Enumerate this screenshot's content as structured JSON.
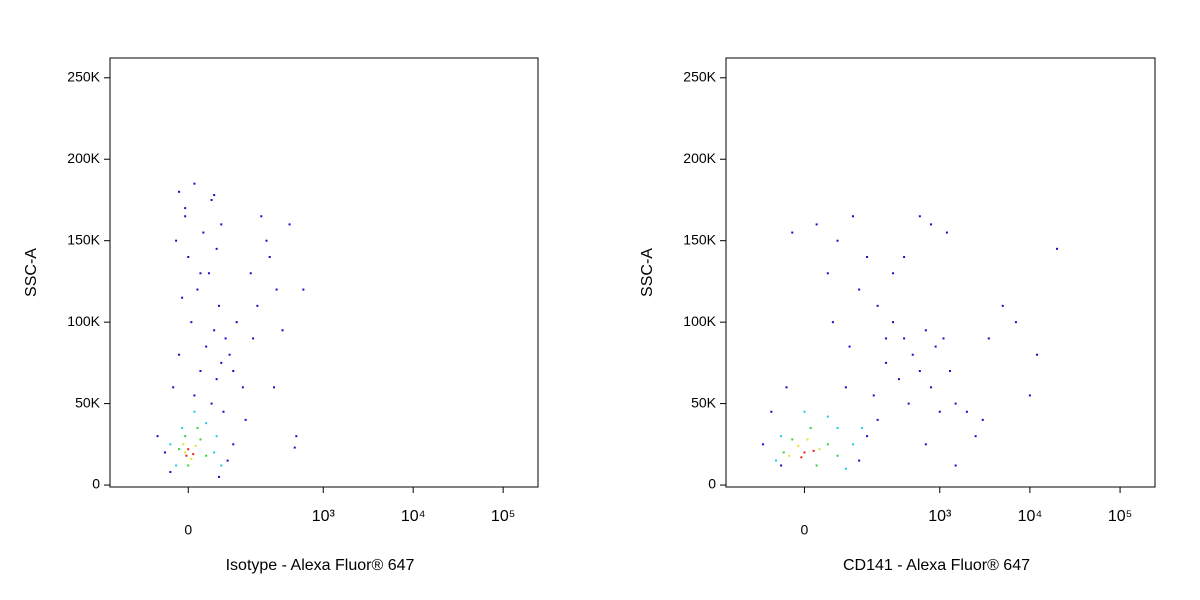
{
  "chart_data": [
    {
      "type": "scatter",
      "xscale": "biexponential",
      "xlabel": "Isotype - Alexa Fluor® 647",
      "ylabel": "SSC-A",
      "xlim": [
        -230,
        244000
      ],
      "ylim": [
        -1200,
        262144
      ],
      "xticks": [
        0,
        {
          "value": 1000,
          "label": "10³"
        },
        {
          "value": 10000,
          "label": "10⁴"
        },
        {
          "value": 100000,
          "label": "10⁵"
        }
      ],
      "yticks": [
        0,
        {
          "value": 50000,
          "label": "50K"
        },
        {
          "value": 100000,
          "label": "100K"
        },
        {
          "value": 150000,
          "label": "150K"
        },
        {
          "value": 200000,
          "label": "200K"
        },
        {
          "value": 250000,
          "label": "250K"
        }
      ],
      "series": [
        {
          "color": "#1010c8",
          "x": [
            -15,
            10,
            40,
            60,
            -5,
            25,
            50,
            0,
            -20,
            35,
            15,
            55,
            -10,
            45,
            70,
            5,
            30,
            60,
            -15,
            20,
            50,
            80,
            10,
            40,
            -25,
            65,
            100,
            90,
            120,
            150,
            200,
            250,
            180,
            300,
            350,
            280,
            230,
            160,
            420,
            600,
            500,
            480,
            130,
            90,
            -40,
            -55,
            75,
            -30,
            55,
            20,
            -5,
            45
          ],
          "y": [
            180000,
            185000,
            175000,
            160000,
            165000,
            155000,
            145000,
            140000,
            150000,
            130000,
            120000,
            110000,
            115000,
            95000,
            90000,
            100000,
            85000,
            75000,
            80000,
            70000,
            65000,
            80000,
            55000,
            50000,
            60000,
            45000,
            100000,
            70000,
            60000,
            130000,
            165000,
            140000,
            110000,
            120000,
            95000,
            60000,
            150000,
            90000,
            160000,
            120000,
            30000,
            23000,
            40000,
            25000,
            20000,
            30000,
            15000,
            8000,
            5000,
            130000,
            170000,
            178000
          ]
        },
        {
          "color": "#20c8e0",
          "x": [
            -10,
            30,
            50,
            -30,
            45,
            10,
            60,
            -20
          ],
          "y": [
            35000,
            38000,
            30000,
            25000,
            20000,
            45000,
            12000,
            12000
          ]
        },
        {
          "color": "#30d040",
          "x": [
            -5,
            20,
            -15,
            30,
            15,
            0
          ],
          "y": [
            30000,
            28000,
            22000,
            18000,
            35000,
            12000
          ]
        },
        {
          "color": "#e8e020",
          "x": [
            -8,
            12,
            5,
            -5
          ],
          "y": [
            25000,
            24000,
            16000,
            20000
          ]
        },
        {
          "color": "#e82010",
          "x": [
            0,
            8,
            -3
          ],
          "y": [
            22000,
            19000,
            18000
          ]
        }
      ]
    },
    {
      "type": "scatter",
      "xscale": "biexponential",
      "xlabel": "CD141 - Alexa Fluor® 647",
      "ylabel": "SSC-A",
      "xlim": [
        -230,
        244000
      ],
      "ylim": [
        -1200,
        262144
      ],
      "xticks": [
        0,
        {
          "value": 1000,
          "label": "10³"
        },
        {
          "value": 10000,
          "label": "10⁴"
        },
        {
          "value": 100000,
          "label": "10⁵"
        }
      ],
      "yticks": [
        0,
        {
          "value": 50000,
          "label": "50K"
        },
        {
          "value": 100000,
          "label": "100K"
        },
        {
          "value": 150000,
          "label": "150K"
        },
        {
          "value": 200000,
          "label": "200K"
        },
        {
          "value": 250000,
          "label": "250K"
        }
      ],
      "series": [
        {
          "color": "#1010c8",
          "x": [
            20,
            60,
            100,
            150,
            40,
            120,
            200,
            300,
            400,
            500,
            700,
            900,
            250,
            350,
            600,
            800,
            1100,
            1300,
            180,
            450,
            1000,
            1500,
            2000,
            3500,
            5000,
            7000,
            10000,
            12000,
            20000,
            3000,
            800,
            600,
            1200,
            -20,
            50,
            90,
            -60,
            -80,
            -40,
            120,
            150,
            200,
            80,
            300,
            1500,
            700,
            400,
            250,
            -30,
            2500
          ],
          "y": [
            160000,
            150000,
            165000,
            140000,
            130000,
            120000,
            110000,
            100000,
            90000,
            80000,
            95000,
            85000,
            75000,
            65000,
            70000,
            60000,
            90000,
            70000,
            55000,
            50000,
            45000,
            50000,
            45000,
            90000,
            110000,
            100000,
            55000,
            80000,
            145000,
            40000,
            160000,
            165000,
            155000,
            155000,
            100000,
            85000,
            45000,
            25000,
            12000,
            15000,
            30000,
            40000,
            60000,
            130000,
            12000,
            25000,
            140000,
            90000,
            60000,
            30000
          ]
        },
        {
          "color": "#20c8e0",
          "x": [
            -40,
            60,
            100,
            -50,
            40,
            80,
            0,
            130
          ],
          "y": [
            30000,
            35000,
            25000,
            15000,
            42000,
            10000,
            45000,
            35000
          ]
        },
        {
          "color": "#30d040",
          "x": [
            -20,
            40,
            -35,
            60,
            10,
            20
          ],
          "y": [
            28000,
            25000,
            20000,
            18000,
            35000,
            12000
          ]
        },
        {
          "color": "#e8e020",
          "x": [
            -10,
            25,
            -25,
            5
          ],
          "y": [
            24000,
            22000,
            18000,
            28000
          ]
        },
        {
          "color": "#e82010",
          "x": [
            0,
            15,
            -5
          ],
          "y": [
            20000,
            21000,
            17000
          ]
        }
      ]
    }
  ]
}
